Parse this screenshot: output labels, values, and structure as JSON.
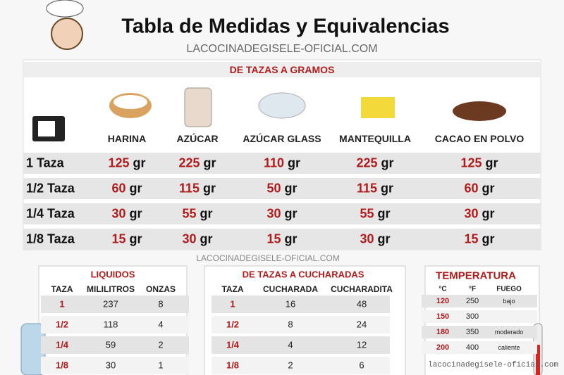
{
  "header": {
    "title": "Tabla de Medidas y Equivalencias",
    "site": "LACOCINADEGISELE-OFICIAL.COM"
  },
  "grams_table": {
    "title": "DE TAZAS A GRAMOS",
    "columns": [
      "HARINA",
      "AZÚCAR",
      "AZÚCAR GLASS",
      "MANTEQUILLA",
      "CACAO EN POLVO"
    ],
    "rows": [
      {
        "label": "1 Taza",
        "cells": [
          {
            "amount": 125,
            "unit": "gr"
          },
          {
            "amount": 225,
            "unit": "gr"
          },
          {
            "amount": 110,
            "unit": "gr"
          },
          {
            "amount": 225,
            "unit": "gr"
          },
          {
            "amount": 125,
            "unit": "gr"
          }
        ]
      },
      {
        "label": "1/2 Taza",
        "cells": [
          {
            "amount": 60,
            "unit": "gr"
          },
          {
            "amount": 115,
            "unit": "gr"
          },
          {
            "amount": 50,
            "unit": "gr"
          },
          {
            "amount": 115,
            "unit": "gr"
          },
          {
            "amount": 60,
            "unit": "gr"
          }
        ]
      },
      {
        "label": "1/4 Taza",
        "cells": [
          {
            "amount": 30,
            "unit": "gr"
          },
          {
            "amount": 55,
            "unit": "gr"
          },
          {
            "amount": 30,
            "unit": "gr"
          },
          {
            "amount": 55,
            "unit": "gr"
          },
          {
            "amount": 30,
            "unit": "gr"
          }
        ]
      },
      {
        "label": "1/8 Taza",
        "cells": [
          {
            "amount": 15,
            "unit": "gr"
          },
          {
            "amount": 30,
            "unit": "gr"
          },
          {
            "amount": 15,
            "unit": "gr"
          },
          {
            "amount": 30,
            "unit": "gr"
          },
          {
            "amount": 15,
            "unit": "gr"
          }
        ]
      }
    ]
  },
  "watermark_mid": "LACOCINADEGISELE-OFICIAL.COM",
  "liquids": {
    "title": "LIQUIDOS",
    "columns": [
      "TAZA",
      "MILILITROS",
      "ONZAS"
    ],
    "rows": [
      [
        "1",
        237,
        8
      ],
      [
        "1/2",
        118,
        4
      ],
      [
        "1/4",
        59,
        2
      ],
      [
        "1/8",
        30,
        1
      ]
    ]
  },
  "spoons": {
    "title": "DE TAZAS A CUCHARADAS",
    "columns": [
      "TAZA",
      "CUCHARADA",
      "CUCHARADITA"
    ],
    "rows": [
      [
        "1",
        16,
        48
      ],
      [
        "1/2",
        8,
        24
      ],
      [
        "1/4",
        4,
        12
      ],
      [
        "1/8",
        2,
        6
      ]
    ]
  },
  "temperature": {
    "title": "TEMPERATURA",
    "columns": [
      "°C",
      "°F",
      "FUEGO"
    ],
    "rows": [
      [
        120,
        250,
        "bajo"
      ],
      [
        150,
        300,
        null
      ],
      [
        180,
        350,
        "moderado"
      ],
      [
        200,
        400,
        "caliente"
      ]
    ]
  },
  "footer_watermark": "lacocinadegisele-oficial.com"
}
